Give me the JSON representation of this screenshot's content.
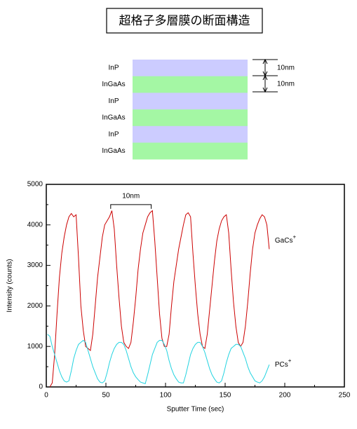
{
  "header": {
    "title": "超格子多層膜の断面構造"
  },
  "diagram": {
    "layers": [
      {
        "label": "InP",
        "color": "#ccccff"
      },
      {
        "label": "InGaAs",
        "color": "#a4f7a4"
      },
      {
        "label": "InP",
        "color": "#ccccff"
      },
      {
        "label": "InGaAs",
        "color": "#a4f7a4"
      },
      {
        "label": "InP",
        "color": "#ccccff"
      },
      {
        "label": "InGaAs",
        "color": "#a4f7a4"
      }
    ],
    "dimensions": [
      {
        "label": "10nm"
      },
      {
        "label": "10nm"
      }
    ]
  },
  "chart_data": {
    "type": "line",
    "x_label": "Sputter Time (sec)",
    "y_label": "Intensity (counts)",
    "xlim": [
      0,
      250
    ],
    "xticks": [
      0,
      50,
      100,
      150,
      200,
      250
    ],
    "xminorticks": [
      25,
      75,
      125,
      175,
      225
    ],
    "ylim": [
      0,
      5000
    ],
    "yticks": [
      0,
      1000,
      2000,
      3000,
      4000,
      5000
    ],
    "yminorticks": [
      500,
      1500,
      2500,
      3500,
      4500
    ],
    "annotations": [
      {
        "text": "10nm",
        "x1": 54,
        "x2": 88,
        "y": 4500
      }
    ],
    "x": [
      1,
      3,
      5,
      7,
      9,
      11,
      13,
      15,
      17,
      19,
      21,
      23,
      25,
      27,
      29,
      31,
      33,
      35,
      37,
      39,
      41,
      43,
      45,
      47,
      49,
      51,
      53,
      55,
      57,
      59,
      61,
      63,
      65,
      67,
      69,
      71,
      73,
      75,
      77,
      79,
      81,
      83,
      85,
      87,
      89,
      91,
      93,
      95,
      97,
      99,
      101,
      103,
      105,
      107,
      109,
      111,
      113,
      115,
      117,
      119,
      121,
      123,
      125,
      127,
      129,
      131,
      133,
      135,
      137,
      139,
      141,
      143,
      145,
      147,
      149,
      151,
      153,
      155,
      157,
      159,
      161,
      163,
      165,
      167,
      169,
      171,
      173,
      175,
      177,
      179,
      181,
      183,
      185,
      187
    ],
    "series": [
      {
        "name": "GaCs+",
        "color": "#cc0000",
        "values": [
          null,
          0,
          100,
          800,
          1800,
          2700,
          3300,
          3700,
          4000,
          4200,
          4280,
          4200,
          4250,
          3200,
          2000,
          1400,
          1000,
          950,
          900,
          1300,
          2000,
          2700,
          3200,
          3700,
          4000,
          4100,
          4200,
          4350,
          3900,
          3000,
          2200,
          1500,
          1100,
          1000,
          950,
          1100,
          1600,
          2200,
          2900,
          3400,
          3800,
          4000,
          4200,
          4300,
          4350,
          3600,
          2700,
          1800,
          1200,
          1000,
          1000,
          1300,
          2000,
          2600,
          3000,
          3400,
          3700,
          4000,
          4250,
          4300,
          4200,
          3300,
          2500,
          1800,
          1300,
          1000,
          950,
          1300,
          1900,
          2500,
          3100,
          3600,
          3900,
          4100,
          4200,
          4250,
          3800,
          2900,
          2100,
          1500,
          1100,
          1000,
          1100,
          1500,
          2100,
          2800,
          3400,
          3800,
          4000,
          4150,
          4250,
          4200,
          4000,
          3400
        ]
      },
      {
        "name": "PCs+",
        "color": "#22d3e0",
        "values": [
          1300,
          1250,
          1000,
          800,
          600,
          400,
          250,
          150,
          120,
          150,
          400,
          700,
          900,
          1050,
          1100,
          1150,
          1100,
          900,
          700,
          500,
          350,
          200,
          120,
          100,
          150,
          350,
          600,
          800,
          950,
          1050,
          1100,
          1100,
          1050,
          900,
          700,
          500,
          350,
          250,
          180,
          120,
          100,
          80,
          300,
          550,
          800,
          950,
          1100,
          1150,
          1150,
          1050,
          900,
          650,
          450,
          300,
          200,
          120,
          100,
          100,
          300,
          550,
          800,
          950,
          1050,
          1100,
          1100,
          1000,
          850,
          650,
          450,
          300,
          200,
          120,
          100,
          150,
          350,
          600,
          800,
          950,
          1000,
          1050,
          1050,
          1000,
          850,
          700,
          500,
          350,
          250,
          150,
          120,
          100,
          150,
          250,
          400,
          550
        ]
      }
    ]
  }
}
